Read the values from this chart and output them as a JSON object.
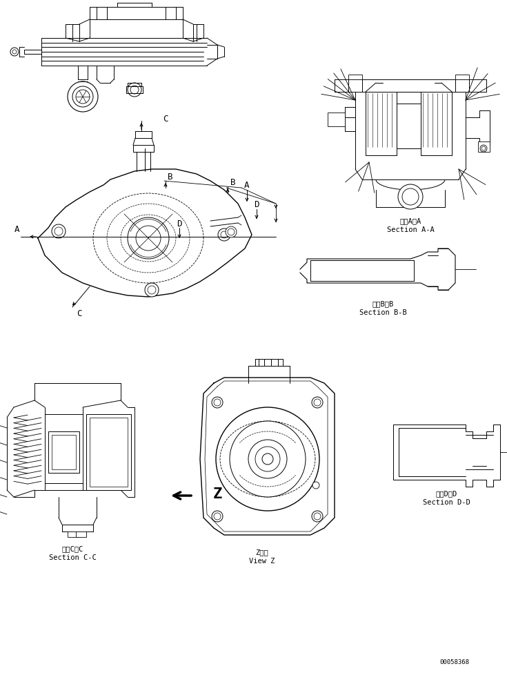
{
  "bg_color": "#ffffff",
  "line_color": "#000000",
  "figure_size": [
    7.35,
    9.75
  ],
  "dpi": 100,
  "labels": {
    "section_aa_jp": "断面A－A",
    "section_aa_en": "Section A-A",
    "section_bb_jp": "断面B－B",
    "section_bb_en": "Section B-B",
    "section_cc_jp": "断面C－C",
    "section_cc_en": "Section C-C",
    "section_dd_jp": "断面D－D",
    "section_dd_en": "Section D-D",
    "view_z_jp": "Z　視",
    "view_z_en": "View Z",
    "part_number": "00058368",
    "label_A": "A",
    "label_B": "B",
    "label_C": "C",
    "label_D": "D",
    "label_Z": "Z"
  },
  "font_size_label": 7.5,
  "font_size_letter": 9,
  "font_size_partno": 6.5,
  "font_size_z": 16
}
